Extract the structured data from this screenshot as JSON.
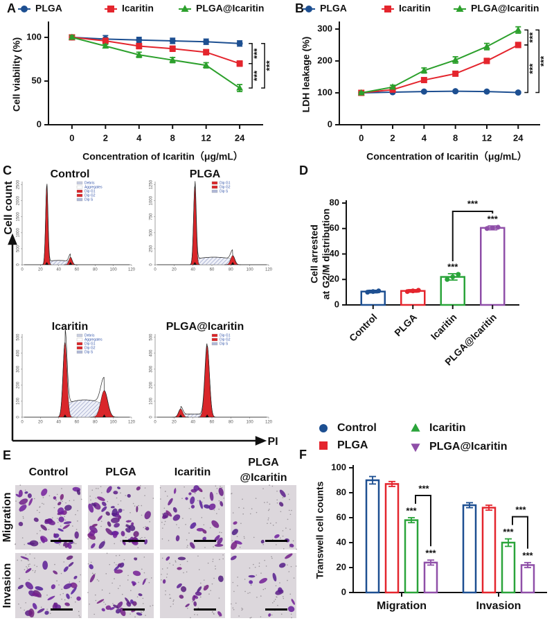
{
  "chart_data": [
    {
      "panel_label": "A",
      "type": "line",
      "categories": [
        "0",
        "2",
        "4",
        "8",
        "12",
        "24"
      ],
      "x_label": "Concentration of Icaritin（μg/mL）",
      "y_label": "Cell viability (%)",
      "ylim": [
        0,
        115
      ],
      "yticks": [
        0,
        50,
        100
      ],
      "annotation": "***",
      "series": [
        {
          "name": "PLGA",
          "color": "#1d4f91",
          "marker": "circle",
          "values": [
            100,
            98,
            97,
            96,
            95,
            93
          ],
          "errors": [
            2,
            4,
            3,
            3,
            3,
            3
          ]
        },
        {
          "name": "Icaritin",
          "color": "#e4252d",
          "marker": "square",
          "values": [
            100,
            96,
            90,
            87,
            83,
            70
          ],
          "errors": [
            2,
            3,
            3,
            3,
            3,
            3
          ]
        },
        {
          "name": "PLGA@Icaritin",
          "color": "#2ca02c",
          "marker": "triangle",
          "values": [
            100,
            90,
            80,
            74,
            68,
            42
          ],
          "errors": [
            2,
            2,
            3,
            3,
            3,
            4
          ]
        }
      ]
    },
    {
      "panel_label": "B",
      "type": "line",
      "categories": [
        "0",
        "2",
        "4",
        "8",
        "12",
        "24"
      ],
      "x_label": "Concentration of Icaritin（μg/mL）",
      "y_label": "LDH leakage (%)",
      "ylim": [
        0,
        315
      ],
      "yticks": [
        0,
        100,
        200,
        300
      ],
      "annotation": "***",
      "series": [
        {
          "name": "PLGA",
          "color": "#1d4f91",
          "marker": "circle",
          "values": [
            100,
            102,
            104,
            105,
            104,
            101
          ],
          "errors": [
            3,
            3,
            3,
            3,
            3,
            3
          ]
        },
        {
          "name": "Icaritin",
          "color": "#e4252d",
          "marker": "square",
          "values": [
            100,
            110,
            140,
            160,
            200,
            250
          ],
          "errors": [
            3,
            5,
            5,
            6,
            8,
            8
          ]
        },
        {
          "name": "PLGA@Icaritin",
          "color": "#2ca02c",
          "marker": "triangle",
          "values": [
            100,
            118,
            170,
            203,
            245,
            297
          ],
          "errors": [
            3,
            6,
            8,
            10,
            10,
            10
          ]
        }
      ]
    },
    {
      "panel_label": "D",
      "type": "bar",
      "categories": [
        "Control",
        "PLGA",
        "Icaritin",
        "PLGA@Icaritin"
      ],
      "values": [
        10.5,
        11,
        22,
        60.5
      ],
      "errors": [
        1,
        1,
        2.5,
        1.5
      ],
      "points": [
        [
          10,
          10.5,
          11
        ],
        [
          10.5,
          11,
          11.5
        ],
        [
          20,
          22,
          24
        ],
        [
          60,
          60.5,
          61
        ]
      ],
      "colors": [
        "#1d4f91",
        "#e4252d",
        "#2aa43a",
        "#8f4fa8"
      ],
      "y_label": [
        "Cell arrested",
        "at G2/M distribution"
      ],
      "ylim": [
        0,
        80
      ],
      "yticks": [
        0,
        20,
        40,
        60,
        80
      ],
      "annotation": "***"
    },
    {
      "panel_label": "F",
      "type": "grouped_bar",
      "categories": [
        "Migration",
        "Invasion"
      ],
      "y_label": "Transwell cell counts",
      "ylim": [
        0,
        100
      ],
      "yticks": [
        0,
        20,
        40,
        60,
        80,
        100
      ],
      "annotation": "***",
      "series": [
        {
          "name": "Control",
          "color": "#1d4f91",
          "marker": "circle",
          "values": [
            90,
            70
          ],
          "errors": [
            3,
            2
          ]
        },
        {
          "name": "PLGA",
          "color": "#e4252d",
          "marker": "square",
          "values": [
            87,
            68
          ],
          "errors": [
            2,
            2
          ]
        },
        {
          "name": "Icaritin",
          "color": "#2aa43a",
          "marker": "triangle",
          "values": [
            58,
            40
          ],
          "errors": [
            2,
            3
          ]
        },
        {
          "name": "PLGA@Icaritin",
          "color": "#8f4fa8",
          "marker": "triangle-down",
          "values": [
            24,
            22
          ],
          "errors": [
            2,
            2
          ]
        }
      ]
    }
  ],
  "flow_cytometry": {
    "panel_label": "C",
    "y_label": "Cell count",
    "x_label": "PI",
    "xlim": [
      0,
      120
    ],
    "xticks": [
      0,
      20,
      40,
      60,
      80,
      100,
      120
    ],
    "plots": [
      {
        "title": "Control",
        "ylim": [
          0,
          2600
        ],
        "yticks": [
          0,
          500,
          1000,
          1500,
          2000,
          2500
        ],
        "legend": [
          {
            "name": "Debris",
            "color": "#c8cde0"
          },
          {
            "name": "Aggregates",
            "color": "#ffffff"
          },
          {
            "name": "Dip G1",
            "color": "#d9262a"
          },
          {
            "name": "Dip G2",
            "color": "#d9262a"
          },
          {
            "name": "Dip S",
            "color": "#b0b8d8"
          }
        ]
      },
      {
        "title": "PLGA",
        "ylim": [
          0,
          1300
        ],
        "yticks": [
          0,
          250,
          500,
          750,
          1000,
          1250
        ],
        "legend": [
          {
            "name": "Dip G1",
            "color": "#d9262a"
          },
          {
            "name": "Dip G2",
            "color": "#d9262a"
          },
          {
            "name": "Dip S",
            "color": "#b0b8d8"
          }
        ]
      },
      {
        "title": "Icaritin",
        "ylim": [
          0,
          520
        ],
        "yticks": [
          0,
          100,
          200,
          300,
          400,
          500
        ],
        "legend": [
          {
            "name": "Debris",
            "color": "#c8cde0"
          },
          {
            "name": "Aggregates",
            "color": "#ffffff"
          },
          {
            "name": "Dip G1",
            "color": "#d9262a"
          },
          {
            "name": "Dip G2",
            "color": "#d9262a"
          },
          {
            "name": "Dip S",
            "color": "#b0b8d8"
          }
        ]
      },
      {
        "title": "PLGA@Icaritin",
        "ylim": [
          0,
          520
        ],
        "yticks": [
          0,
          100,
          200,
          300,
          400,
          500
        ],
        "legend": [
          {
            "name": "Dip G1",
            "color": "#d9262a"
          },
          {
            "name": "Dip G2",
            "color": "#d9262a"
          },
          {
            "name": "Dip S",
            "color": "#b0b8d8"
          }
        ]
      }
    ]
  },
  "transwell_images": {
    "panel_label": "E",
    "columns": [
      [
        "Control"
      ],
      [
        "PLGA"
      ],
      [
        "Icaritin"
      ],
      [
        "PLGA",
        "@Icaritin"
      ]
    ],
    "rows": [
      "Migration",
      "Invasion"
    ]
  }
}
